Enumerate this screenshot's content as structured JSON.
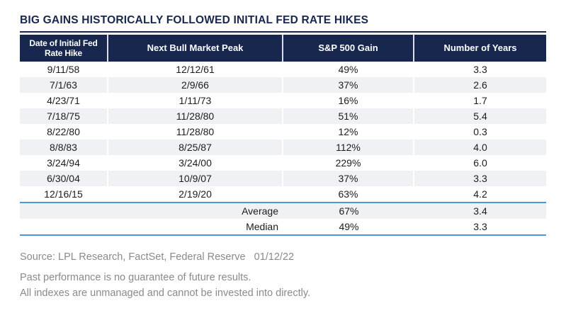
{
  "title": "BIG GAINS HISTORICALLY FOLLOWED INITIAL FED RATE HIKES",
  "colors": {
    "navy": "#17274E",
    "header_background": "#17274E",
    "alt_row_background": "#F0F1F4",
    "blue_rule": "#4B96D8",
    "footer_text": "#8a8a8a"
  },
  "chart_data": {
    "type": "table",
    "title": "BIG GAINS HISTORICALLY FOLLOWED INITIAL FED RATE HIKES",
    "columns": [
      "Date of Initial Fed\nRate Hike",
      "Next Bull Market Peak",
      "S&P 500 Gain",
      "Number of Years"
    ],
    "rows": [
      [
        "9/11/58",
        "12/12/61",
        "49%",
        "3.3"
      ],
      [
        "7/1/63",
        "2/9/66",
        "37%",
        "2.6"
      ],
      [
        "4/23/71",
        "1/11/73",
        "16%",
        "1.7"
      ],
      [
        "7/18/75",
        "11/28/80",
        "51%",
        "5.4"
      ],
      [
        "8/22/80",
        "11/28/80",
        "12%",
        "0.3"
      ],
      [
        "8/8/83",
        "8/25/87",
        "112%",
        "4.0"
      ],
      [
        "3/24/94",
        "3/24/00",
        "229%",
        "6.0"
      ],
      [
        "6/30/04",
        "10/9/07",
        "37%",
        "3.3"
      ],
      [
        "12/16/15",
        "2/19/20",
        "63%",
        "4.2"
      ]
    ],
    "summary": [
      {
        "label": "Average",
        "gain": "67%",
        "years": "3.4"
      },
      {
        "label": "Median",
        "gain": "49%",
        "years": "3.3"
      }
    ]
  },
  "footer": {
    "source": "Source: LPL Research, FactSet, Federal Reserve",
    "date": "01/12/22",
    "disclaimer1": "Past performance is no guarantee of future results.",
    "disclaimer2": "All indexes are unmanaged and cannot be invested into directly."
  }
}
